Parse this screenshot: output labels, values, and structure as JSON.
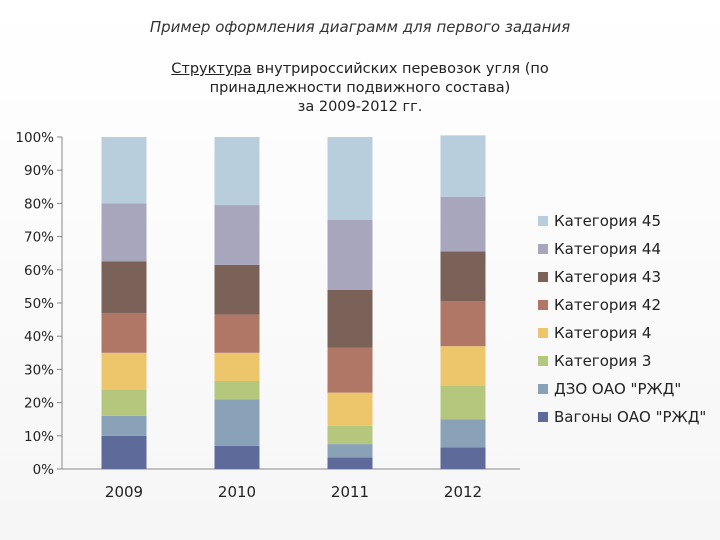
{
  "header": {
    "text": "Пример оформления диаграмм для первого задания"
  },
  "chart_data": {
    "type": "bar",
    "stacked": true,
    "title_lines": [
      "Структура",
      " внутрироссийских перевозок угля (по",
      "принадлежности подвижного состава)",
      "за 2009-2012 гг."
    ],
    "categories": [
      "2009",
      "2010",
      "2011",
      "2012"
    ],
    "ylim": [
      0,
      100
    ],
    "yticks": [
      "0%",
      "10%",
      "20%",
      "30%",
      "40%",
      "50%",
      "60%",
      "70%",
      "80%",
      "90%",
      "100%"
    ],
    "legend_position": "right",
    "legend": [
      "Категория 45",
      "Категория 44",
      "Категория 43",
      "Категория 42",
      "Категория 4",
      "Категория 3",
      "ДЗО ОАО \"РЖД\"",
      "Вагоны ОАО \"РЖД\""
    ],
    "series": [
      {
        "name": "Вагоны ОАО \"РЖД\"",
        "color": "#5e6b9a",
        "values": [
          10,
          7,
          3.5,
          6.5
        ]
      },
      {
        "name": "ДЗО ОАО \"РЖД\"",
        "color": "#8aa2b8",
        "values": [
          6,
          14,
          4,
          8.5
        ]
      },
      {
        "name": "Категория 3",
        "color": "#b4c77d",
        "values": [
          8,
          5.5,
          5.5,
          10
        ]
      },
      {
        "name": "Категория 4",
        "color": "#edc56b",
        "values": [
          11,
          8.5,
          10,
          12
        ]
      },
      {
        "name": "Категория 42",
        "color": "#b07766",
        "values": [
          12,
          11.5,
          13.5,
          13.5
        ]
      },
      {
        "name": "Категория 43",
        "color": "#7b6258",
        "values": [
          15.5,
          15,
          17.5,
          15
        ]
      },
      {
        "name": "Категория 44",
        "color": "#a8a6bd",
        "values": [
          17.5,
          18,
          21,
          16.5
        ]
      },
      {
        "name": "Категория 45",
        "color": "#b9cedd",
        "values": [
          20,
          20.5,
          25,
          18.5
        ]
      }
    ]
  }
}
